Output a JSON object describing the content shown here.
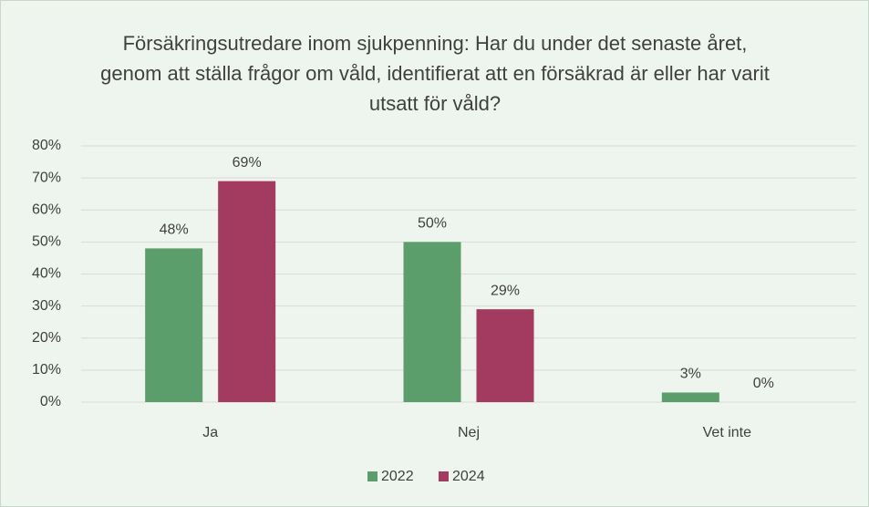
{
  "chart_data": {
    "type": "bar",
    "title": "Försäkringsutredare inom sjukpenning: Har du under det senaste året, genom att ställa frågor om våld, identifierat att en försäkrad är eller har varit utsatt för våld?",
    "categories": [
      "Ja",
      "Nej",
      "Vet inte"
    ],
    "series": [
      {
        "name": "2022",
        "color": "#5b9e6b",
        "values": [
          48,
          50,
          3
        ],
        "value_labels": [
          "48%",
          "50%",
          "3%"
        ]
      },
      {
        "name": "2024",
        "color": "#a33a5f",
        "values": [
          69,
          29,
          0
        ],
        "value_labels": [
          "69%",
          "29%",
          "0%"
        ]
      }
    ],
    "ylim": [
      0,
      80
    ],
    "yticks": [
      {
        "value": 0,
        "label": "0%"
      },
      {
        "value": 10,
        "label": "10%"
      },
      {
        "value": 20,
        "label": "20%"
      },
      {
        "value": 30,
        "label": "30%"
      },
      {
        "value": 40,
        "label": "40%"
      },
      {
        "value": 50,
        "label": "50%"
      },
      {
        "value": 60,
        "label": "60%"
      },
      {
        "value": 70,
        "label": "70%"
      },
      {
        "value": 80,
        "label": "80%"
      }
    ],
    "grid": true,
    "legend": "bottom"
  }
}
